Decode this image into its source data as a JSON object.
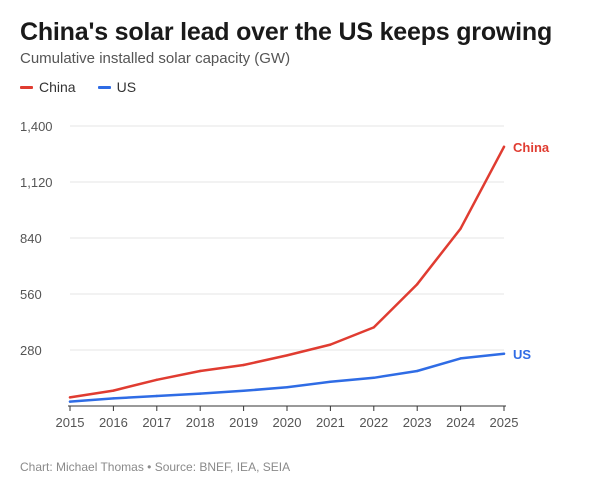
{
  "header": {
    "title": "China's solar lead over the US keeps growing",
    "subtitle": "Cumulative installed solar capacity (GW)"
  },
  "legend": {
    "items": [
      {
        "label": "China",
        "color": "#e03c31"
      },
      {
        "label": "US",
        "color": "#2f6ce5"
      }
    ]
  },
  "footer": {
    "credit": "Chart: Michael Thomas • Source: BNEF, IEA, SEIA"
  },
  "chart_data": {
    "type": "line",
    "title": "China's solar lead over the US keeps growing",
    "subtitle": "Cumulative installed solar capacity (GW)",
    "xlabel": "",
    "ylabel": "",
    "x": [
      2015,
      2016,
      2017,
      2018,
      2019,
      2020,
      2021,
      2022,
      2023,
      2024,
      2025
    ],
    "x_tick_labels": [
      "2015",
      "2016",
      "2017",
      "2018",
      "2019",
      "2020",
      "2021",
      "2022",
      "2023",
      "2024",
      "2025"
    ],
    "ylim": [
      0,
      1400
    ],
    "y_ticks": [
      280,
      560,
      840,
      1120,
      1400
    ],
    "y_tick_labels": [
      "280",
      "560",
      "840",
      "1,120",
      "1,400"
    ],
    "grid": true,
    "legend_position": "top-left",
    "series": [
      {
        "name": "China",
        "color": "#e03c31",
        "values": [
          43,
          77,
          131,
          175,
          205,
          253,
          307,
          393,
          609,
          887,
          1296
        ]
      },
      {
        "name": "US",
        "color": "#2f6ce5",
        "values": [
          22,
          38,
          50,
          62,
          76,
          94,
          121,
          141,
          175,
          238,
          261
        ]
      }
    ],
    "end_labels": [
      "China",
      "US"
    ]
  }
}
